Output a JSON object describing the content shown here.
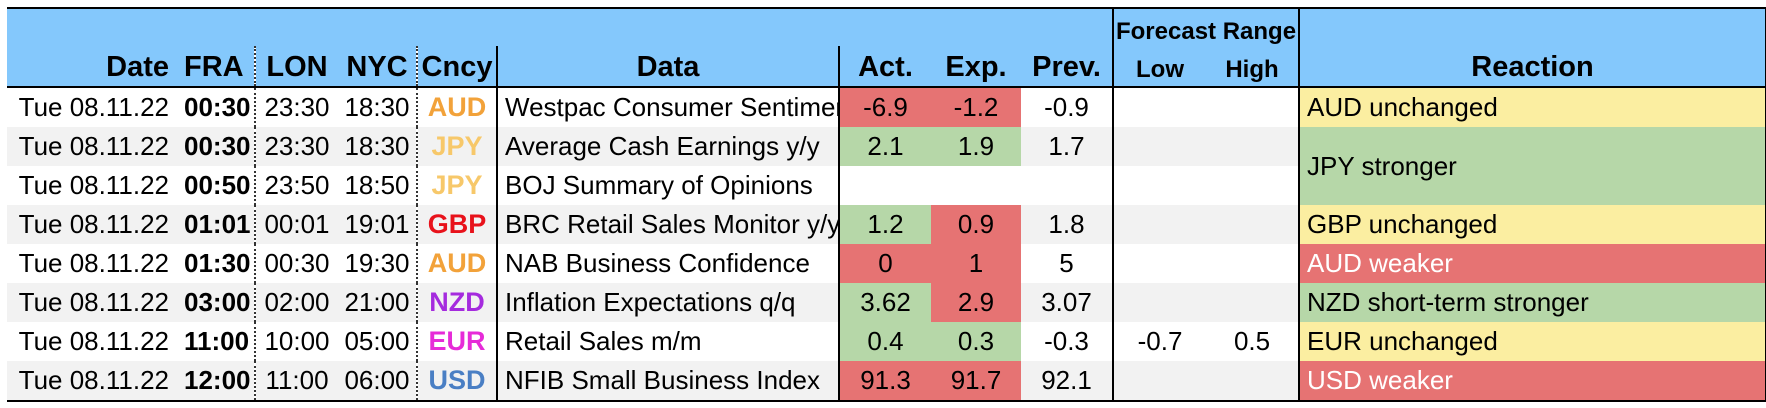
{
  "header": {
    "date": "Date",
    "fra": "FRA",
    "lon": "LON",
    "nyc": "NYC",
    "cncy": "Cncy",
    "data": "Data",
    "act": "Act.",
    "exp": "Exp.",
    "prev": "Prev.",
    "forecast_range": "Forecast Range",
    "low": "Low",
    "high": "High",
    "reaction": "Reaction"
  },
  "rows": [
    {
      "date": "Tue 08.11.22",
      "fra": "00:30",
      "lon": "23:30",
      "nyc": "18:30",
      "cncy": "AUD",
      "cncy_color": "#f2a23a",
      "data": "Westpac Consumer Sentiment",
      "act": "-6.9",
      "act_status": "red",
      "exp": "-1.2",
      "exp_status": "red",
      "prev": "-0.9",
      "low": "",
      "high": "",
      "reaction": "AUD unchanged",
      "reaction_status": "yellow"
    },
    {
      "date": "Tue 08.11.22",
      "fra": "00:30",
      "lon": "23:30",
      "nyc": "18:30",
      "cncy": "JPY",
      "cncy_color": "#f7c86a",
      "data": "Average Cash Earnings y/y",
      "act": "2.1",
      "act_status": "green",
      "exp": "1.9",
      "exp_status": "green",
      "prev": "1.7",
      "low": "",
      "high": "",
      "reaction": "JPY stronger",
      "reaction_status": "green"
    },
    {
      "date": "Tue 08.11.22",
      "fra": "00:50",
      "lon": "23:50",
      "nyc": "18:50",
      "cncy": "JPY",
      "cncy_color": "#f7c86a",
      "data": "BOJ Summary of Opinions",
      "act": "",
      "act_status": "none",
      "exp": "",
      "exp_status": "none",
      "prev": "",
      "low": "",
      "high": ""
    },
    {
      "date": "Tue 08.11.22",
      "fra": "01:01",
      "lon": "00:01",
      "nyc": "19:01",
      "cncy": "GBP",
      "cncy_color": "#e8121b",
      "data": "BRC Retail Sales Monitor y/y",
      "act": "1.2",
      "act_status": "green",
      "exp": "0.9",
      "exp_status": "red",
      "prev": "1.8",
      "low": "",
      "high": "",
      "reaction": "GBP unchanged",
      "reaction_status": "yellow"
    },
    {
      "date": "Tue 08.11.22",
      "fra": "01:30",
      "lon": "00:30",
      "nyc": "19:30",
      "cncy": "AUD",
      "cncy_color": "#f2a23a",
      "data": "NAB Business Confidence",
      "act": "0",
      "act_status": "red",
      "exp": "1",
      "exp_status": "red",
      "prev": "5",
      "low": "",
      "high": "",
      "reaction": "AUD weaker",
      "reaction_status": "red"
    },
    {
      "date": "Tue 08.11.22",
      "fra": "03:00",
      "lon": "02:00",
      "nyc": "21:00",
      "cncy": "NZD",
      "cncy_color": "#a52bde",
      "data": "Inflation Expectations q/q",
      "act": "3.62",
      "act_status": "green",
      "exp": "2.9",
      "exp_status": "red",
      "prev": "3.07",
      "low": "",
      "high": "",
      "reaction": "NZD short-term stronger",
      "reaction_status": "green"
    },
    {
      "date": "Tue 08.11.22",
      "fra": "11:00",
      "lon": "10:00",
      "nyc": "05:00",
      "cncy": "EUR",
      "cncy_color": "#e62bd8",
      "data": "Retail Sales m/m",
      "act": "0.4",
      "act_status": "green",
      "exp": "0.3",
      "exp_status": "green",
      "prev": "-0.3",
      "low": "-0.7",
      "high": "0.5",
      "reaction": "EUR unchanged",
      "reaction_status": "yellow"
    },
    {
      "date": "Tue 08.11.22",
      "fra": "12:00",
      "lon": "11:00",
      "nyc": "06:00",
      "cncy": "USD",
      "cncy_color": "#4a7fc4",
      "data": "NFIB Small Business Index",
      "act": "91.3",
      "act_status": "red",
      "exp": "91.7",
      "exp_status": "red",
      "prev": "92.1",
      "low": "",
      "high": "",
      "reaction": "USD weaker",
      "reaction_status": "red"
    }
  ]
}
